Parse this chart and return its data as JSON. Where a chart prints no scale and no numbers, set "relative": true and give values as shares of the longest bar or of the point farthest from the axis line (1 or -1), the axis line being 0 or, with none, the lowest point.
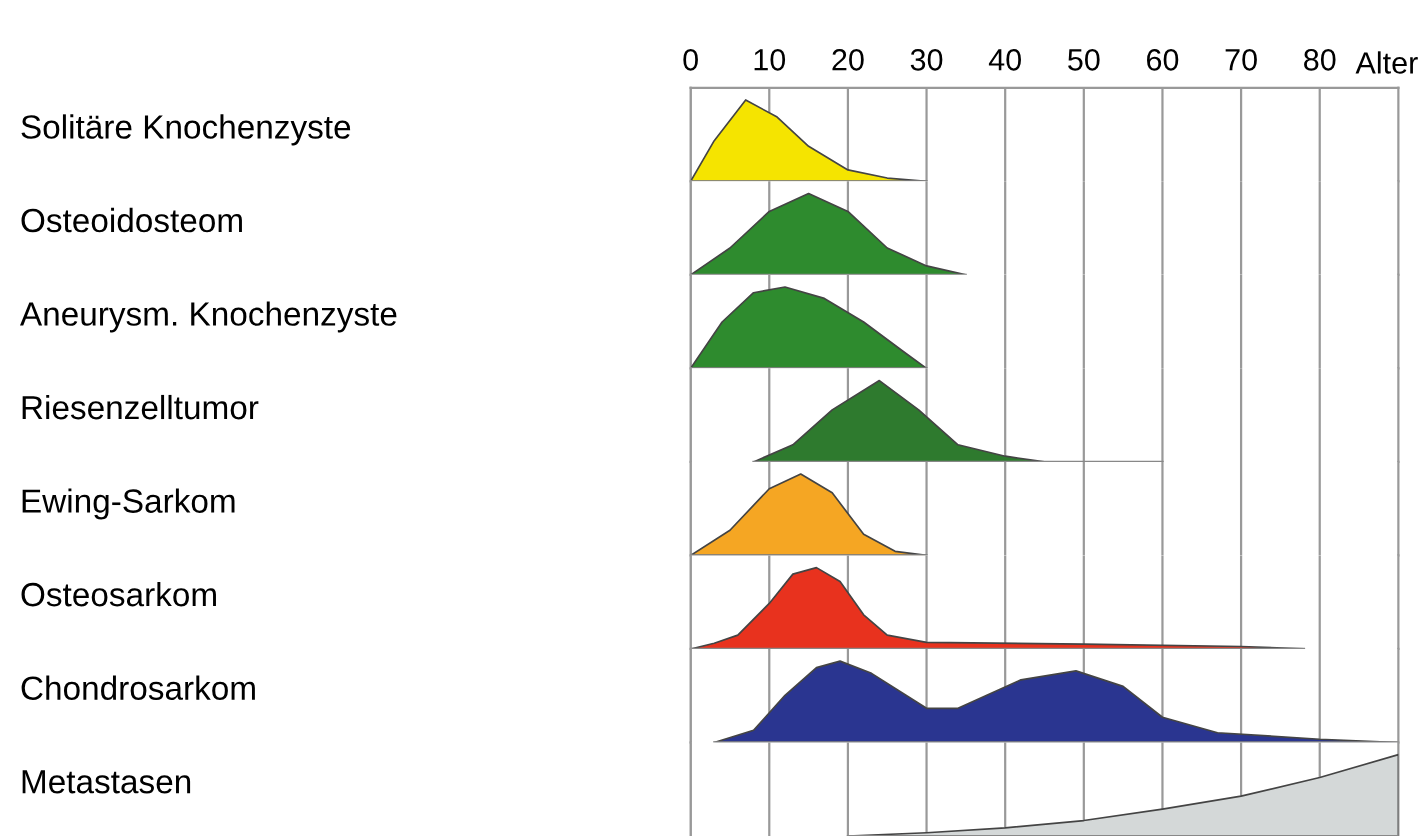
{
  "chart_data": [
    {
      "type": "area",
      "relative": true,
      "ylabel": "Solitäre Knochenzyste",
      "xlabel": "Alter",
      "xlim": [
        0,
        90
      ],
      "xticks": [
        0,
        10,
        20,
        30,
        40,
        50,
        60,
        70,
        80
      ],
      "grid": "x",
      "color": "#f5e400",
      "x": [
        0,
        3,
        7,
        11,
        15,
        20,
        25,
        30
      ],
      "values": [
        0,
        0.5,
        1,
        0.79,
        0.43,
        0.14,
        0.04,
        0
      ]
    },
    {
      "type": "area",
      "relative": true,
      "ylabel": "Osteoidosteom",
      "xlim": [
        0,
        90
      ],
      "xticks": [
        0,
        10,
        20,
        30,
        40,
        50,
        60,
        70,
        80
      ],
      "tick_labels": false,
      "grid": "x",
      "color": "#2e8b2e",
      "x": [
        0,
        5,
        10,
        15,
        20,
        25,
        30,
        35
      ],
      "values": [
        0,
        0.33,
        0.78,
        1,
        0.78,
        0.33,
        0.11,
        0
      ]
    },
    {
      "type": "area",
      "relative": true,
      "ylabel": "Aneurysm. Knochenzyste",
      "xlim": [
        0,
        90
      ],
      "xticks": [
        0,
        10,
        20,
        30,
        40,
        50,
        60,
        70,
        80
      ],
      "tick_labels": false,
      "grid": "x",
      "color": "#2e8b2e",
      "x": [
        0,
        4,
        8,
        12,
        17,
        22,
        27,
        30
      ],
      "values": [
        0,
        0.57,
        0.93,
        1,
        0.86,
        0.57,
        0.21,
        0
      ]
    },
    {
      "type": "area",
      "relative": true,
      "ylabel": "Riesenzelltumor",
      "xlim": [
        0,
        90
      ],
      "xticks": [
        0,
        10,
        20,
        30,
        40,
        50,
        60,
        70,
        80
      ],
      "tick_labels": false,
      "grid": "x",
      "color": "#2e7a2e",
      "x": [
        8,
        13,
        18,
        24,
        29,
        34,
        40,
        45,
        60
      ],
      "values": [
        0,
        0.21,
        0.64,
        1,
        0.64,
        0.21,
        0.07,
        0,
        0
      ]
    },
    {
      "type": "area",
      "relative": true,
      "ylabel": "Ewing-Sarkom",
      "xlim": [
        0,
        90
      ],
      "xticks": [
        0,
        10,
        20,
        30,
        40,
        50,
        60,
        70,
        80
      ],
      "tick_labels": false,
      "grid": "x",
      "color": "#f5a623",
      "x": [
        0,
        5,
        10,
        14,
        18,
        22,
        26,
        30
      ],
      "values": [
        0,
        0.31,
        0.82,
        1,
        0.77,
        0.26,
        0.05,
        0
      ]
    },
    {
      "type": "area",
      "relative": true,
      "ylabel": "Osteosarkom",
      "xlim": [
        0,
        90
      ],
      "xticks": [
        0,
        10,
        20,
        30,
        40,
        50,
        60,
        70,
        80
      ],
      "tick_labels": false,
      "grid": "x",
      "color": "#e8321e",
      "x": [
        0,
        3,
        6,
        10,
        13,
        16,
        19,
        22,
        25,
        30,
        50,
        70,
        78
      ],
      "values": [
        0,
        0.07,
        0.17,
        0.56,
        0.92,
        1,
        0.83,
        0.42,
        0.17,
        0.08,
        0.06,
        0.03,
        0
      ]
    },
    {
      "type": "area",
      "relative": true,
      "ylabel": "Chondrosarkom",
      "xlim": [
        0,
        90
      ],
      "xticks": [
        0,
        10,
        20,
        30,
        40,
        50,
        60,
        70,
        80
      ],
      "tick_labels": false,
      "grid": "x",
      "color": "#2a3590",
      "x": [
        3,
        8,
        12,
        16,
        19,
        23,
        30,
        34,
        42,
        49,
        55,
        60,
        67,
        80,
        90
      ],
      "values": [
        0,
        0.15,
        0.58,
        0.92,
        1,
        0.85,
        0.42,
        0.42,
        0.77,
        0.88,
        0.69,
        0.31,
        0.12,
        0.04,
        0
      ]
    },
    {
      "type": "area",
      "relative": true,
      "ylabel": "Metastasen",
      "xlim": [
        0,
        90
      ],
      "xticks": [
        0,
        10,
        20,
        30,
        40,
        50,
        60,
        70,
        80
      ],
      "tick_labels": false,
      "grid": "x",
      "color": "#d4d8d8",
      "x": [
        20,
        30,
        40,
        50,
        60,
        70,
        80,
        90
      ],
      "values": [
        0,
        0.04,
        0.1,
        0.19,
        0.33,
        0.49,
        0.72,
        1
      ]
    }
  ]
}
